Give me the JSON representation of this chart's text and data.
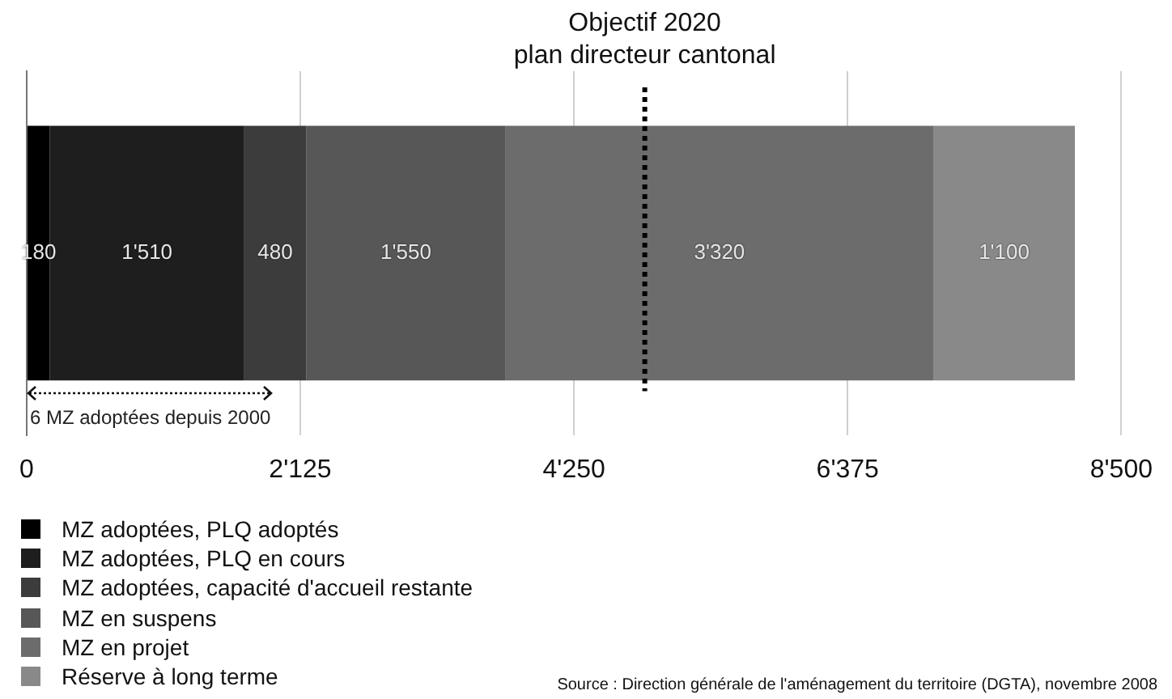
{
  "chart_data": {
    "type": "bar",
    "orientation": "horizontal",
    "stacked": true,
    "categories": [
      null
    ],
    "series": [
      {
        "name": "MZ adoptées, PLQ adoptés",
        "color": "#000000",
        "values": [
          180
        ],
        "value_labels": [
          "180"
        ]
      },
      {
        "name": "MZ adoptées, PLQ en cours",
        "color": "#1e1e1e",
        "values": [
          1510
        ],
        "value_labels": [
          "1'510"
        ]
      },
      {
        "name": "MZ adoptées, capacité d'accueil restante",
        "color": "#3c3c3c",
        "values": [
          480
        ],
        "value_labels": [
          "480"
        ]
      },
      {
        "name": "MZ en suspens",
        "color": "#575757",
        "values": [
          1550
        ],
        "value_labels": [
          "1'550"
        ]
      },
      {
        "name": "MZ en projet",
        "color": "#6c6c6c",
        "values": [
          3320
        ],
        "value_labels": [
          "3'320"
        ]
      },
      {
        "name": "Réserve à long terme",
        "color": "#898989",
        "values": [
          1100
        ],
        "value_labels": [
          "1'100"
        ]
      }
    ],
    "xlim": [
      0,
      8500
    ],
    "xticks": [
      0,
      {
        "value": 2125,
        "label": "2'125"
      },
      {
        "value": 4250,
        "label": "4'250"
      },
      {
        "value": 6375,
        "label": "6'375"
      },
      {
        "value": 8500,
        "label": "8'500"
      }
    ],
    "grid": "x",
    "legend": "bottom left",
    "ref_lines": [
      {
        "axis": "x",
        "value": 4800,
        "label": "Objectif 2020\nplan directeur cantonal",
        "color": "#000000",
        "line_style": "dotted"
      }
    ],
    "annotations": [
      "6 MZ adoptées depuis 2000",
      "Source : Direction générale de l'aménagement du territoire (DGTA), novembre 2008"
    ]
  }
}
